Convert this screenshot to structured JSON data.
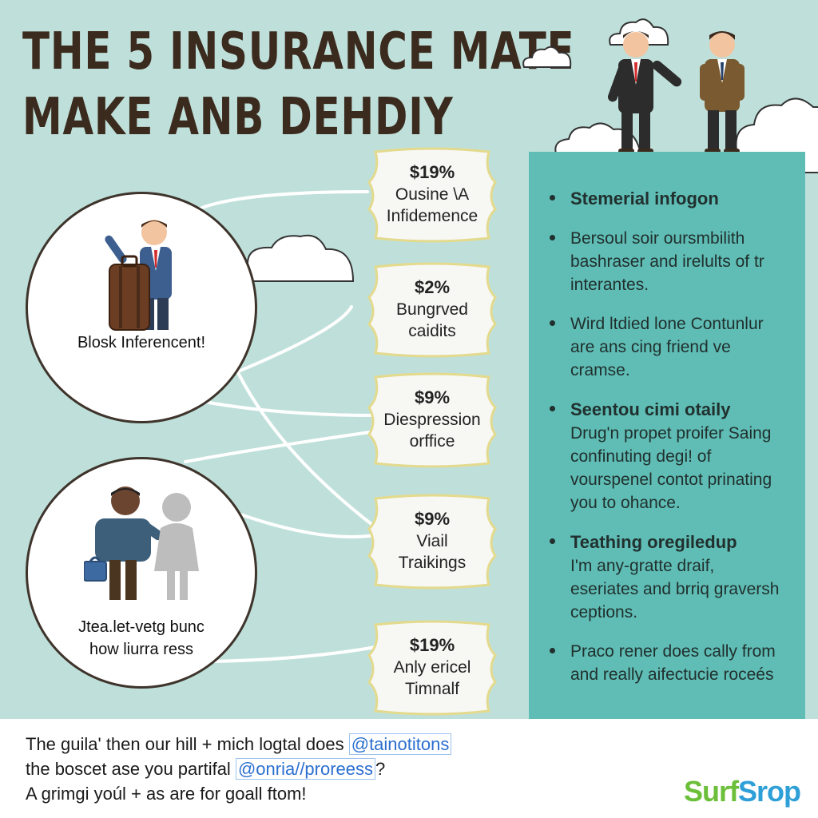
{
  "title": {
    "line1": "THE 5 INSURANCE MATE",
    "line2": "MAKE ANB DEHDIY"
  },
  "circles": [
    {
      "label": "Blosk Inferencent!"
    },
    {
      "label_line1": "Jtea.let-vetg bunc",
      "label_line2": "how liurra ress"
    }
  ],
  "badges": [
    {
      "price": "$19%",
      "line1": "Ousine \\A",
      "line2": "Infidemence"
    },
    {
      "price": "$2%",
      "line1": "Bungrved",
      "line2": "caidits"
    },
    {
      "price": "$9%",
      "line1": "Diespression",
      "line2": "orffice"
    },
    {
      "price": "$9%",
      "line1": "Viail",
      "line2": "Traikings"
    },
    {
      "price": "$19%",
      "line1": "Anly ericel",
      "line2": "Timnalf"
    }
  ],
  "panel": {
    "items": [
      {
        "head": "Stemerial infogon",
        "body": ""
      },
      {
        "head": "",
        "body": "Bersoul soir oursmbilith bashraser and irelults of tr interantes."
      },
      {
        "head": "",
        "body": "Wird ltdied lone Contunlur are ans cing friend ve cramse."
      },
      {
        "head": "Seentou cimi otaily",
        "body": "Drug'n propet proifer Saing confinuting degi! of vourspenel contot prinating you to ohance."
      },
      {
        "head": "Teathing oregiledup",
        "body": "I'm any-gratte draif, eseriates and brriq graversh ceptions."
      },
      {
        "head": "",
        "body": "Praco rener does cally from and really aifectucie roceés"
      }
    ]
  },
  "footer": {
    "line1_text": "The guila' then our hill + mich logtal does",
    "line1_link": "@tainotitons",
    "line2_text": "the boscet ase you partifal",
    "line2_link": "@onria//proreess",
    "line2_end": "?",
    "line3_text": "A grimgi yoúl + as are for goall ftom!"
  },
  "brand": {
    "part1": "Surf",
    "part2": "Srop",
    "color1": "#6cbf3a",
    "color2": "#2f9fd8"
  },
  "colors": {
    "background": "#bfe0da",
    "panel": "#5fbdb5",
    "title": "#3b2a1e"
  }
}
